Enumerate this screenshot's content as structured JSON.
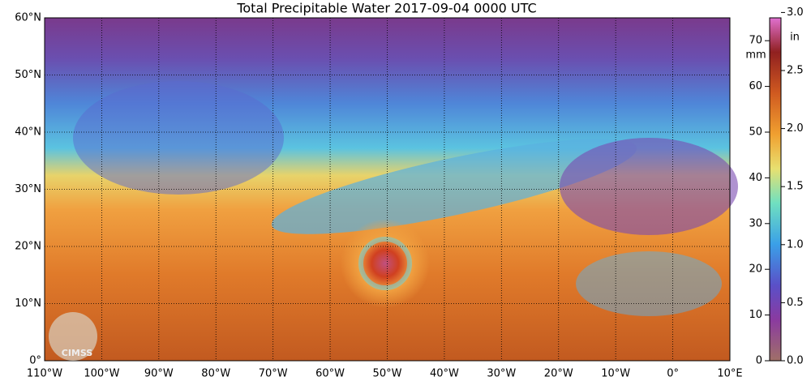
{
  "title": "Total Precipitable Water  2017-09-04 0000 UTC",
  "lat_labels": [
    "60°N",
    "50°N",
    "40°N",
    "30°N",
    "20°N",
    "10°N",
    "0°"
  ],
  "lon_labels": [
    "110°W",
    "100°W",
    "90°W",
    "80°W",
    "70°W",
    "60°W",
    "50°W",
    "40°W",
    "30°W",
    "20°W",
    "10°W",
    "0°",
    "10°E"
  ],
  "colorbar": {
    "mm_unit": "mm",
    "mm_ticks": [
      "0",
      "10",
      "20",
      "30",
      "40",
      "50",
      "60",
      "70"
    ],
    "in_unit": "in",
    "in_ticks": [
      "0.0",
      "0.5",
      "1.0",
      "1.5",
      "2.0",
      "2.5",
      "3.0"
    ]
  },
  "logo": "CIMSS"
}
